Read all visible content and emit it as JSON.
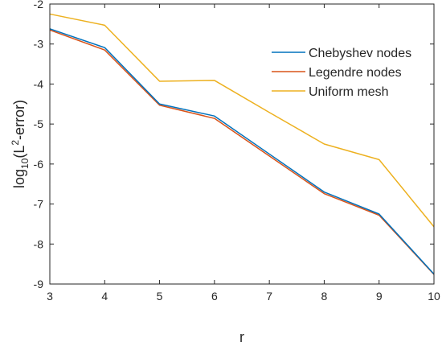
{
  "chart_data": {
    "type": "line",
    "title": "",
    "xlabel": "r",
    "ylabel": {
      "main": "log",
      "sub": "10",
      "open": "(L",
      "sup": "2",
      "rest": "-error)"
    },
    "xlim": [
      3,
      10
    ],
    "ylim": [
      -9,
      -2
    ],
    "xticks": [
      3,
      4,
      5,
      6,
      7,
      8,
      9,
      10
    ],
    "yticks": [
      -2,
      -3,
      -4,
      -5,
      -6,
      -7,
      -8,
      -9
    ],
    "grid": false,
    "legend_position": "top-right",
    "x": [
      3,
      4,
      5,
      6,
      7,
      8,
      9,
      10
    ],
    "series": [
      {
        "name": "Chebyshev nodes",
        "color": "#0072BD",
        "values": [
          -2.62,
          -3.09,
          -4.5,
          -4.8,
          -5.75,
          -6.7,
          -7.25,
          -8.75
        ]
      },
      {
        "name": "Legendre nodes",
        "color": "#D95319",
        "values": [
          -2.65,
          -3.15,
          -4.53,
          -4.86,
          -5.8,
          -6.74,
          -7.28,
          -8.76
        ]
      },
      {
        "name": "Uniform mesh",
        "color": "#EDB120",
        "values": [
          -2.25,
          -2.53,
          -3.93,
          -3.91,
          -4.71,
          -5.5,
          -5.89,
          -7.57
        ]
      }
    ]
  }
}
